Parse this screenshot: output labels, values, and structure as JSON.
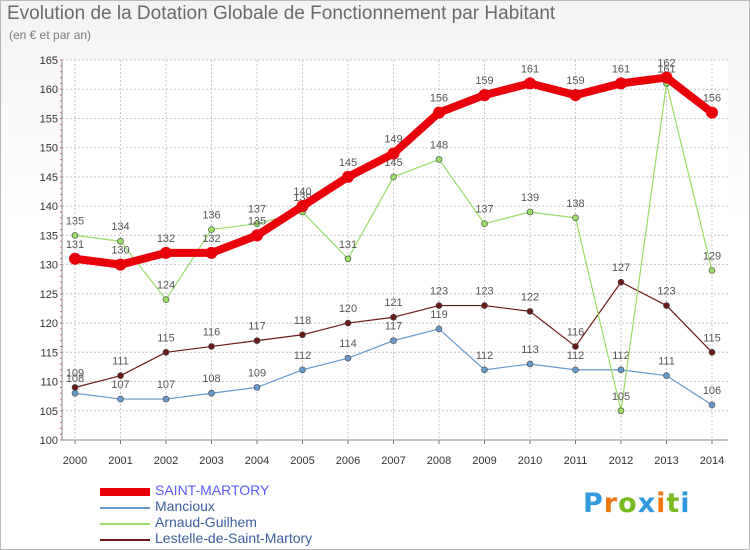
{
  "chart_data": {
    "type": "line",
    "title": "Evolution de la Dotation Globale de Fonctionnement par Habitant",
    "subtitle": "(en € et par an)",
    "xlabel": "",
    "ylabel": "",
    "x": [
      "2000",
      "2001",
      "2002",
      "2003",
      "2004",
      "2005",
      "2006",
      "2007",
      "2008",
      "2009",
      "2010",
      "2011",
      "2012",
      "2013",
      "2014"
    ],
    "ylim": [
      100,
      165
    ],
    "yticks": [
      "100",
      "105",
      "110",
      "115",
      "120",
      "125",
      "130",
      "135",
      "140",
      "145",
      "150",
      "155",
      "160",
      "165"
    ],
    "grid": true,
    "series": [
      {
        "name": "SAINT-MARTORY",
        "color": "#e8000b",
        "values": [
          131,
          130,
          132,
          132,
          135,
          140,
          145,
          149,
          156,
          159,
          161,
          159,
          161,
          162,
          156
        ]
      },
      {
        "name": "Mancioux",
        "color": "#6699cc",
        "values": [
          108,
          107,
          107,
          108,
          109,
          112,
          114,
          117,
          119,
          112,
          113,
          112,
          112,
          111,
          106
        ]
      },
      {
        "name": "Arnaud-Guilhem",
        "color": "#99dd66",
        "values": [
          135,
          134,
          124,
          136,
          137,
          139,
          131,
          145,
          148,
          137,
          139,
          138,
          105,
          161,
          129
        ]
      },
      {
        "name": "Lestelle-de-Saint-Martory",
        "color": "#6b1a1a",
        "values": [
          109,
          111,
          115,
          116,
          117,
          118,
          120,
          121,
          123,
          123,
          122,
          116,
          127,
          123,
          115
        ]
      }
    ]
  },
  "logo": {
    "letters": [
      "P",
      "r",
      "o",
      "x",
      "i",
      "t",
      "i"
    ],
    "colors": [
      "#3399dd",
      "#ee7711",
      "#77bb22",
      "#3399dd",
      "#ee7711",
      "#77bb22",
      "#3399dd"
    ]
  }
}
